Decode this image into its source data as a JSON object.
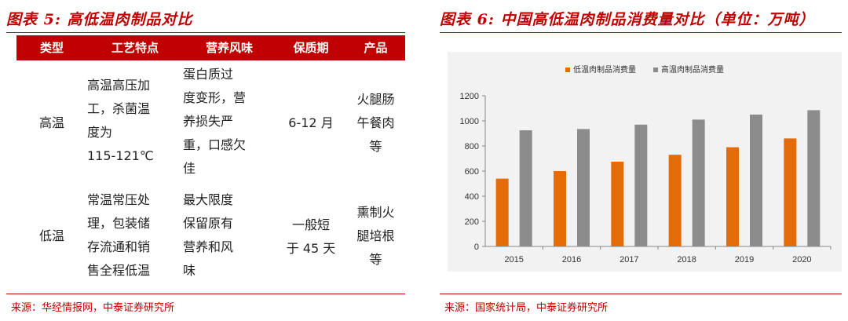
{
  "left": {
    "title": "图表 5:  高低温肉制品对比",
    "headers": [
      "类型",
      "工艺特点",
      "营养风味",
      "保质期",
      "产品"
    ],
    "rows": [
      {
        "type": "高温",
        "process": [
          "高温高压加",
          "工，杀菌温",
          "度为",
          "115-121℃"
        ],
        "nutrition": [
          "蛋白质过",
          "度变形，营",
          "养损失严",
          "重，口感欠",
          "佳"
        ],
        "shelf": [
          "6-12 月"
        ],
        "product": [
          "火腿肠",
          "午餐肉",
          "等"
        ]
      },
      {
        "type": "低温",
        "process": [
          "常温常压处",
          "理，包装储",
          "存流通和销",
          "售全程低温"
        ],
        "nutrition": [
          "最大限度",
          "保留原有",
          "营养和风",
          "味"
        ],
        "shelf": [
          "一般短",
          "于 45 天"
        ],
        "product": [
          "熏制火",
          "腿培根",
          "等"
        ]
      }
    ],
    "source": "来源：华经情报网，中泰证券研究所"
  },
  "right": {
    "title": "图表 6:  中国高低温肉制品消费量对比（单位：万吨）",
    "source": "来源：国家统计局，中泰证券研究所"
  },
  "chart_data": {
    "type": "bar",
    "title": "",
    "xlabel": "",
    "ylabel": "",
    "categories": [
      "2015",
      "2016",
      "2017",
      "2018",
      "2019",
      "2020"
    ],
    "series": [
      {
        "name": "低温肉制品消费量",
        "color": "#e36c09",
        "values": [
          540,
          600,
          675,
          730,
          790,
          860
        ]
      },
      {
        "name": "高温肉制品消费量",
        "color": "#8c8c8c",
        "values": [
          925,
          935,
          970,
          1010,
          1050,
          1085
        ]
      }
    ],
    "ylim": [
      0,
      1200
    ],
    "yticks": [
      0,
      200,
      400,
      600,
      800,
      1000,
      1200
    ],
    "grid": false,
    "legend": "top-center"
  }
}
